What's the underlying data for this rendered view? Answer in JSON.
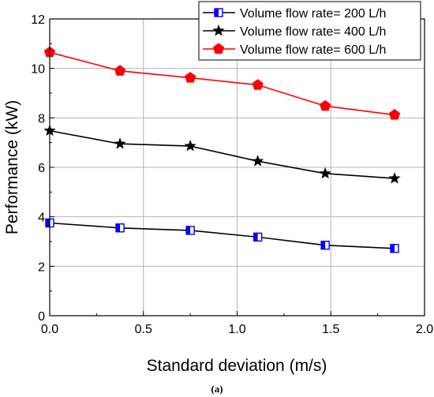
{
  "chart_data": {
    "type": "line",
    "xlabel": "Standard deviation (m/s)",
    "ylabel": "Performance (kW)",
    "xlim": [
      0.0,
      2.0
    ],
    "ylim": [
      0,
      12
    ],
    "xticks": [
      "0.0",
      "0.5",
      "1.0",
      "1.5",
      "2.0"
    ],
    "yticks": [
      "0",
      "2",
      "4",
      "6",
      "8",
      "10",
      "12"
    ],
    "grid": true,
    "legend_position": "top-right",
    "x": [
      0.0,
      0.375,
      0.75,
      1.11,
      1.47,
      1.84
    ],
    "series": [
      {
        "name": "Volume flow rate= 200 L/h",
        "color": "#000000",
        "marker": "half-filled-square",
        "marker_color": "#0000ff",
        "values": [
          3.75,
          3.55,
          3.45,
          3.18,
          2.85,
          2.72
        ]
      },
      {
        "name": "Volume flow rate= 400 L/h",
        "color": "#000000",
        "marker": "star",
        "marker_color": "#000000",
        "values": [
          7.48,
          6.95,
          6.86,
          6.25,
          5.75,
          5.55
        ]
      },
      {
        "name": "Volume flow rate= 600 L/h",
        "color": "#ff0000",
        "marker": "pentagon",
        "marker_color": "#ff0000",
        "values": [
          10.65,
          9.9,
          9.62,
          9.33,
          8.48,
          8.12
        ]
      }
    ]
  },
  "caption": "(a)"
}
